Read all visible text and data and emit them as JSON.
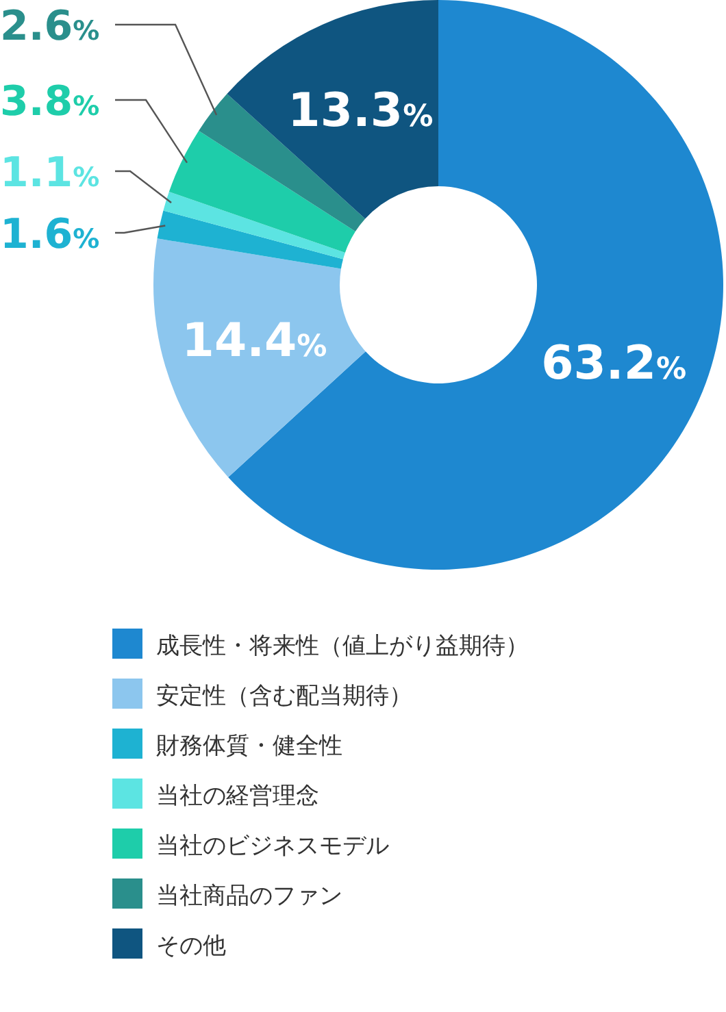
{
  "chart_data": {
    "type": "donut",
    "categories": [
      "成長性・将来性（値上がり益期待）",
      "安定性（含む配当期待）",
      "財務体質・健全性",
      "当社の経営理念",
      "当社のビジネスモデル",
      "当社商品のファン",
      "その他"
    ],
    "values": [
      63.2,
      14.4,
      1.6,
      1.1,
      3.8,
      2.6,
      13.3
    ],
    "colors": [
      "#1e88d0",
      "#8cc6ee",
      "#1eb2d2",
      "#5ce4e2",
      "#1ecdaa",
      "#2a8f8c",
      "#0f5580"
    ],
    "value_labels": [
      "63.2%",
      "14.4%",
      "1.6%",
      "1.1%",
      "3.8%",
      "2.6%",
      "13.3%"
    ],
    "legend": "bottom"
  }
}
